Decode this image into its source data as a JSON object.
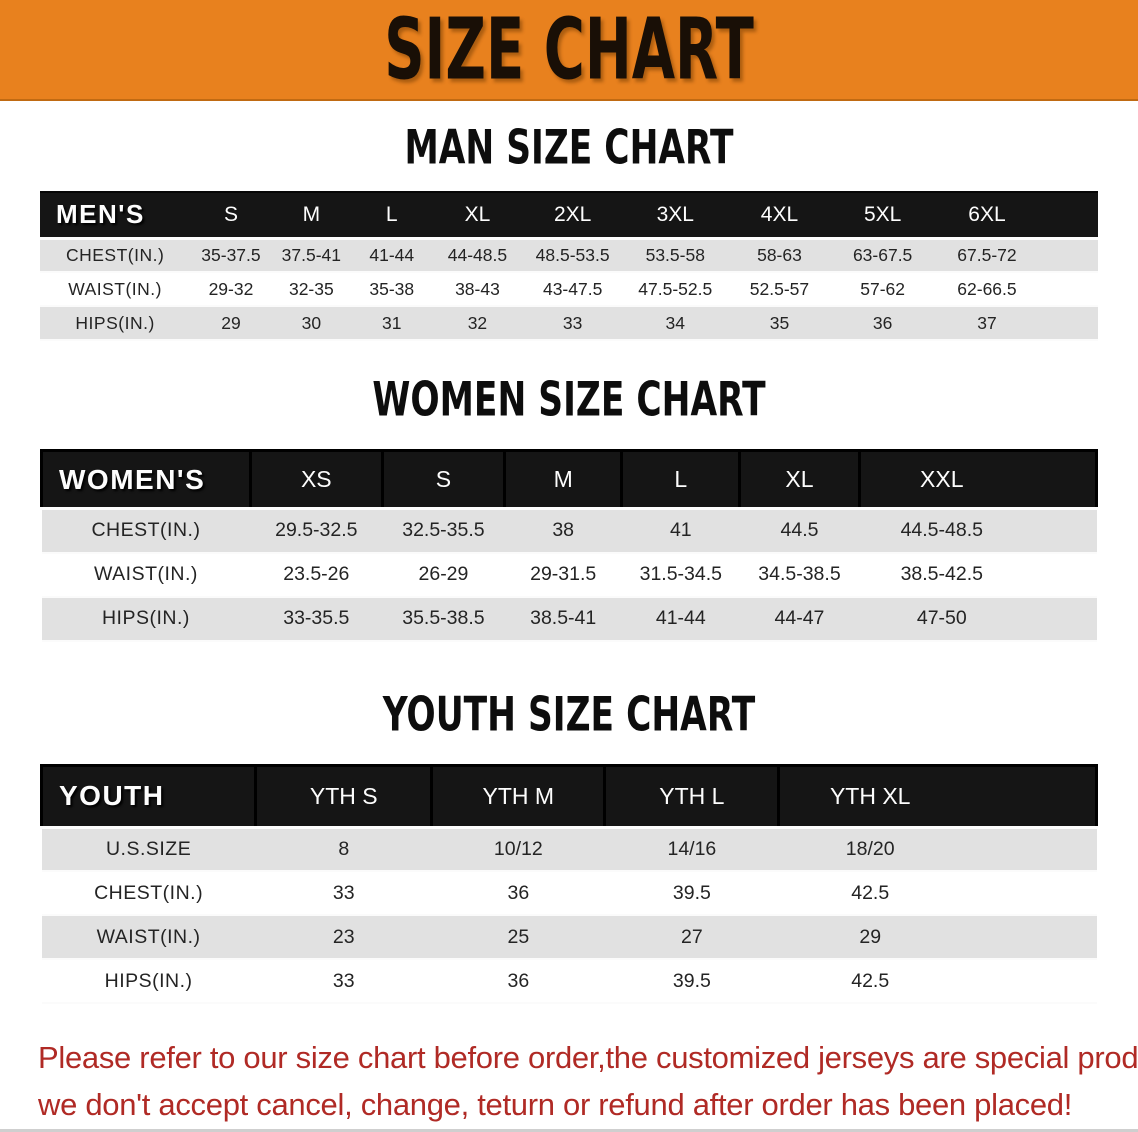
{
  "banner": {
    "title": "SIZE CHART"
  },
  "colors": {
    "banner_bg": "#e8811e",
    "table_header_bg": "#151515",
    "row_gray": "#e1e1e1",
    "warning_red": "#b02a25"
  },
  "sections": [
    {
      "key": "men",
      "title": "MAN SIZE CHART",
      "header_label": "MEN'S",
      "sizes": [
        "S",
        "M",
        "L",
        "XL",
        "2XL",
        "3XL",
        "4XL",
        "5XL",
        "6XL"
      ],
      "rows": [
        {
          "label": "CHEST(IN.)",
          "values": [
            "35-37.5",
            "37.5-41",
            "41-44",
            "44-48.5",
            "48.5-53.5",
            "53.5-58",
            "58-63",
            "63-67.5",
            "67.5-72"
          ]
        },
        {
          "label": "WAIST(IN.)",
          "values": [
            "29-32",
            "32-35",
            "35-38",
            "38-43",
            "43-47.5",
            "47.5-52.5",
            "52.5-57",
            "57-62",
            "62-66.5"
          ]
        },
        {
          "label": "HIPS(IN.)",
          "values": [
            "29",
            "30",
            "31",
            "32",
            "33",
            "34",
            "35",
            "36",
            "37"
          ]
        }
      ]
    },
    {
      "key": "women",
      "title": "WOMEN SIZE CHART",
      "header_label": "WOMEN'S",
      "sizes": [
        "XS",
        "S",
        "M",
        "L",
        "XL",
        "XXL"
      ],
      "rows": [
        {
          "label": "CHEST(IN.)",
          "values": [
            "29.5-32.5",
            "32.5-35.5",
            "38",
            "41",
            "44.5",
            "44.5-48.5"
          ]
        },
        {
          "label": "WAIST(IN.)",
          "values": [
            "23.5-26",
            "26-29",
            "29-31.5",
            "31.5-34.5",
            "34.5-38.5",
            "38.5-42.5"
          ]
        },
        {
          "label": "HIPS(IN.)",
          "values": [
            "33-35.5",
            "35.5-38.5",
            "38.5-41",
            "41-44",
            "44-47",
            "47-50"
          ]
        }
      ]
    },
    {
      "key": "youth",
      "title": "YOUTH SIZE CHART",
      "header_label": "YOUTH",
      "sizes": [
        "YTH S",
        "YTH M",
        "YTH L",
        "YTH XL"
      ],
      "rows": [
        {
          "label": "U.S.SIZE",
          "values": [
            "8",
            "10/12",
            "14/16",
            "18/20"
          ]
        },
        {
          "label": "CHEST(IN.)",
          "values": [
            "33",
            "36",
            "39.5",
            "42.5"
          ]
        },
        {
          "label": "WAIST(IN.)",
          "values": [
            "23",
            "25",
            "27",
            "29"
          ]
        },
        {
          "label": "HIPS(IN.)",
          "values": [
            "33",
            "36",
            "39.5",
            "42.5"
          ]
        }
      ]
    }
  ],
  "disclaimer": {
    "line1": "Please refer to our size chart before order,the customized jerseys are special products,",
    "line2": "we don't accept cancel, change, teturn or refund after order has been placed!"
  }
}
